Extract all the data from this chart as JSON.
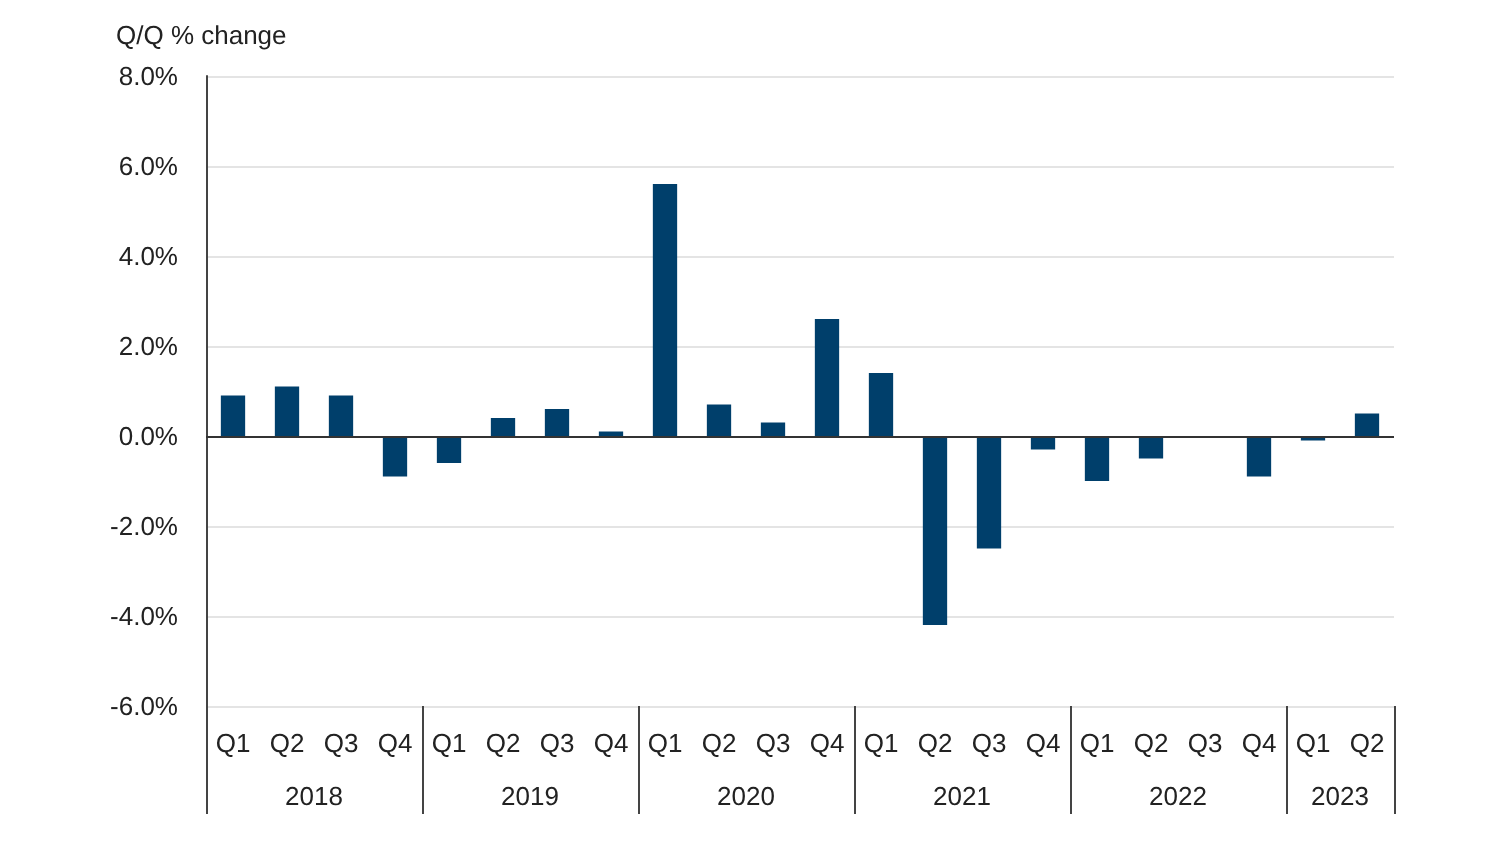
{
  "chart_data": {
    "type": "bar",
    "ylabel": "Q/Q % change",
    "categories": [
      "Q1",
      "Q2",
      "Q3",
      "Q4",
      "Q1",
      "Q2",
      "Q3",
      "Q4",
      "Q1",
      "Q2",
      "Q3",
      "Q4",
      "Q1",
      "Q2",
      "Q3",
      "Q4",
      "Q1",
      "Q2",
      "Q3",
      "Q4",
      "Q1",
      "Q2"
    ],
    "values": [
      0.9,
      1.1,
      0.9,
      -0.9,
      -0.6,
      0.4,
      0.6,
      0.1,
      5.6,
      0.7,
      0.3,
      2.6,
      1.4,
      -4.2,
      -2.5,
      -0.3,
      -1.0,
      -0.5,
      0,
      -0.9,
      -0.1,
      0.5
    ],
    "color": "#003f6b",
    "annotations": [
      "2018",
      "2019",
      "2020",
      "2021",
      "2022",
      "2023"
    ],
    "ylim": [
      -6,
      8
    ],
    "yticks": [
      {
        "value": -6,
        "label": "-6.0%"
      },
      {
        "value": -4,
        "label": "-4.0%"
      },
      {
        "value": -2,
        "label": "-2.0%"
      },
      {
        "value": 0,
        "label": "0.0%"
      },
      {
        "value": 2,
        "label": "2.0%"
      },
      {
        "value": 4,
        "label": "4.0%"
      },
      {
        "value": 6,
        "label": "6.0%"
      },
      {
        "value": 8,
        "label": "8.0%"
      }
    ],
    "grid": "y"
  }
}
